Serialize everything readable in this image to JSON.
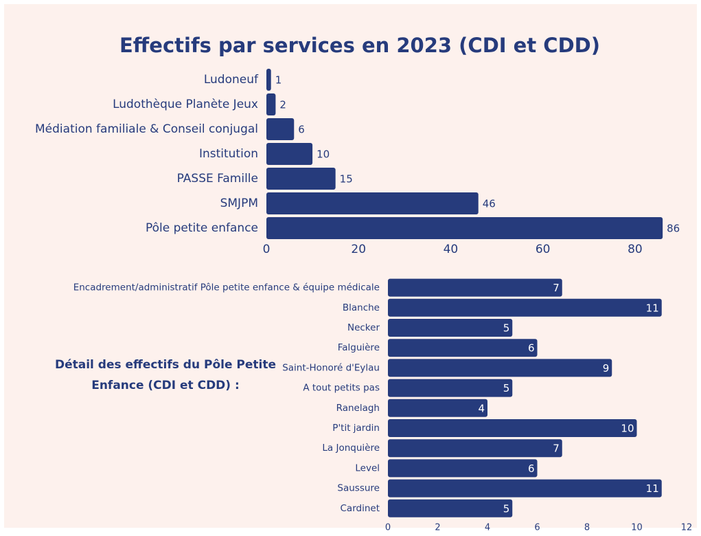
{
  "chart_data": [
    {
      "type": "bar",
      "orientation": "horizontal",
      "title": "Effectifs par services en 2023 (CDI et CDD)",
      "categories": [
        "Ludoneuf",
        "Ludothèque Planète Jeux",
        "Médiation familiale & Conseil conjugal",
        "Institution",
        "PASSE Famille",
        "SMJPM",
        "Pôle petite enfance"
      ],
      "values": [
        1,
        2,
        6,
        10,
        15,
        46,
        86
      ],
      "color": "#263b7c",
      "xlim": [
        0,
        90
      ],
      "xticks": [
        0,
        20,
        40,
        60,
        80
      ],
      "grid": false
    },
    {
      "type": "bar",
      "orientation": "horizontal",
      "title": "Détail des effectifs du Pôle Petite Enfance (CDI et CDD) :",
      "categories": [
        "Encadrement/administratif Pôle petite enfance & équipe médicale",
        "Blanche",
        "Necker",
        "Falguière",
        "Saint-Honoré d'Eylau",
        "A tout petits pas",
        "Ranelagh",
        "P'tit jardin",
        "La Jonquière",
        "Level",
        "Saussure",
        "Cardinet"
      ],
      "values": [
        7,
        11,
        5,
        6,
        9,
        5,
        4,
        10,
        7,
        6,
        11,
        5
      ],
      "color": "#263b7c",
      "xlim": [
        0,
        12
      ],
      "xticks": [
        0,
        2,
        4,
        6,
        8,
        10,
        12
      ],
      "grid": false
    }
  ]
}
